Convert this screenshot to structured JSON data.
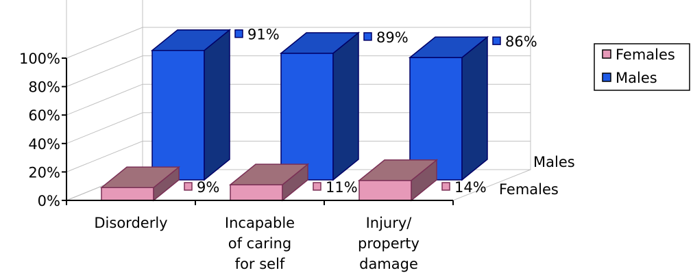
{
  "chart_data": {
    "type": "bar",
    "subtype": "3d-clustered-depth",
    "categories": [
      "Disorderly",
      "Incapable of caring for self",
      "Injury/ property damage"
    ],
    "category_lines": [
      [
        "Disorderly"
      ],
      [
        "Incapable",
        "of caring",
        "for self"
      ],
      [
        "Injury/",
        "property",
        "damage"
      ]
    ],
    "series": [
      {
        "name": "Females",
        "values": [
          9,
          11,
          14
        ],
        "labels": [
          "9%",
          "11%",
          "14%"
        ],
        "color": "#E699B8"
      },
      {
        "name": "Males",
        "values": [
          91,
          89,
          86
        ],
        "labels": [
          "91%",
          "89%",
          "86%"
        ],
        "color": "#1E5AE6"
      }
    ],
    "y_ticks": [
      "0%",
      "20%",
      "40%",
      "60%",
      "80%",
      "100%"
    ],
    "ylim": [
      0,
      100
    ],
    "depth_labels": [
      "Females",
      "Males"
    ],
    "legend_placement": "right",
    "grid": true
  }
}
